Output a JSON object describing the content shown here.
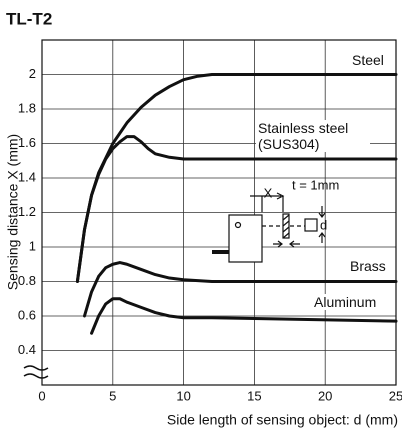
{
  "chart_data": {
    "type": "line",
    "title": "TL-T2",
    "y_label": "Sensing distance X (mm)",
    "x_label": "Side length of sensing object: d (mm)",
    "xlim": [
      0,
      25
    ],
    "xticks": [
      0,
      5,
      10,
      15,
      20,
      25
    ],
    "ylim": [
      0.2,
      2.2
    ],
    "yticks": [
      0.4,
      0.6,
      0.8,
      1,
      1.2,
      1.4,
      1.6,
      1.8,
      2
    ],
    "grid": true,
    "series": [
      {
        "name": "Steel",
        "color": "#111111",
        "x": [
          2.5,
          3,
          3.5,
          4,
          5,
          6,
          7,
          8,
          9,
          10,
          11,
          12,
          15,
          25
        ],
        "values": [
          0.8,
          1.1,
          1.3,
          1.43,
          1.6,
          1.72,
          1.81,
          1.88,
          1.93,
          1.97,
          1.99,
          2.0,
          2.0,
          2.0
        ]
      },
      {
        "name": "Stainless steel (SUS304)",
        "color": "#111111",
        "x": [
          2.5,
          3,
          3.5,
          4,
          4.5,
          5,
          5.5,
          6,
          6.5,
          7,
          7.5,
          8,
          9,
          10,
          15,
          25
        ],
        "values": [
          0.8,
          1.1,
          1.3,
          1.42,
          1.51,
          1.57,
          1.61,
          1.64,
          1.64,
          1.61,
          1.57,
          1.54,
          1.52,
          1.51,
          1.51,
          1.51
        ]
      },
      {
        "name": "Brass",
        "color": "#111111",
        "x": [
          3,
          3.5,
          4,
          4.5,
          5,
          5.5,
          6,
          7,
          8,
          9,
          10,
          12,
          25
        ],
        "values": [
          0.6,
          0.74,
          0.83,
          0.88,
          0.9,
          0.91,
          0.9,
          0.87,
          0.84,
          0.82,
          0.81,
          0.8,
          0.8
        ]
      },
      {
        "name": "Aluminum",
        "color": "#111111",
        "x": [
          3.5,
          4,
          4.5,
          5,
          5.5,
          6,
          7,
          8,
          9,
          10,
          12,
          25
        ],
        "values": [
          0.5,
          0.6,
          0.67,
          0.7,
          0.7,
          0.68,
          0.65,
          0.62,
          0.6,
          0.59,
          0.59,
          0.57
        ]
      }
    ],
    "annotations": {
      "distance": "X",
      "thickness": "t = 1mm",
      "side": "d"
    }
  }
}
